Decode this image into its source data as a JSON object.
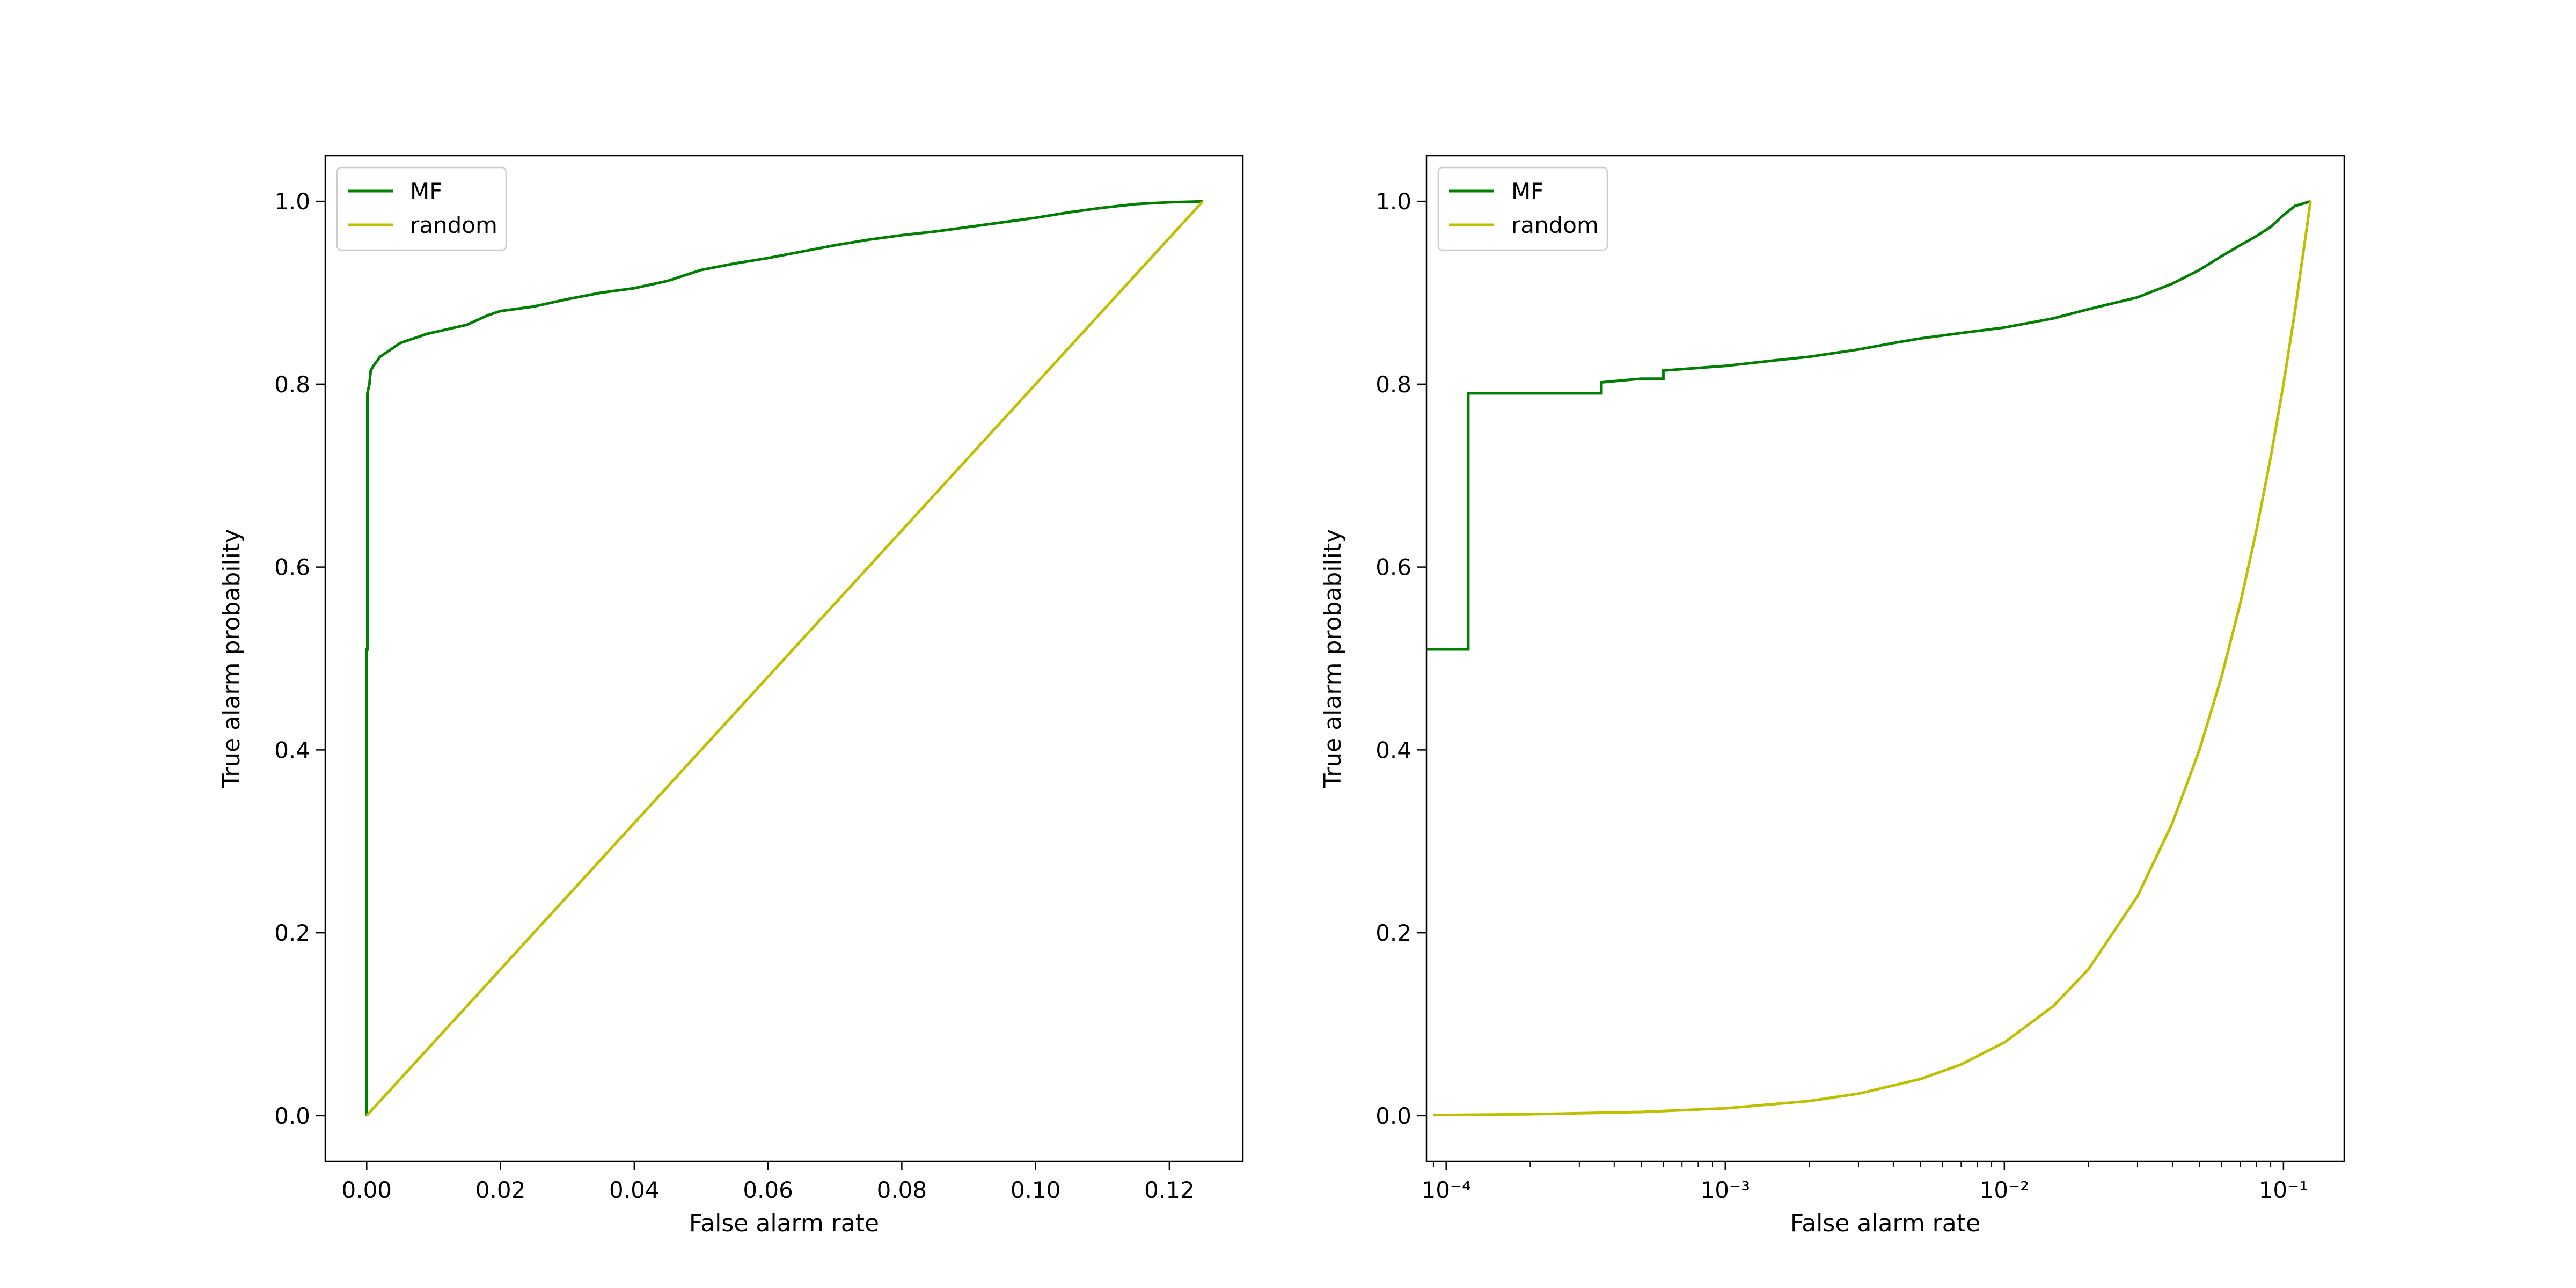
{
  "chart_data": [
    {
      "type": "line",
      "title": "",
      "xlabel": "False alarm rate",
      "ylabel": "True alarm probability",
      "xscale": "linear",
      "xlim": [
        -0.0062,
        0.131
      ],
      "ylim": [
        -0.05,
        1.05
      ],
      "xticks": [
        0.0,
        0.02,
        0.04,
        0.06,
        0.08,
        0.1,
        0.12
      ],
      "xtick_labels": [
        "0.00",
        "0.02",
        "0.04",
        "0.06",
        "0.08",
        "0.10",
        "0.12"
      ],
      "yticks": [
        0.0,
        0.2,
        0.4,
        0.6,
        0.8,
        1.0
      ],
      "ytick_labels": [
        "0.0",
        "0.2",
        "0.4",
        "0.6",
        "0.8",
        "1.0"
      ],
      "grid": false,
      "legend_position": "top-left",
      "series": [
        {
          "name": "MF",
          "color": "#008000",
          "style": "step",
          "x": [
            0.0,
            0.0,
            0.0001,
            0.0001,
            0.0004,
            0.0006,
            0.001,
            0.0015,
            0.002,
            0.003,
            0.004,
            0.005,
            0.007,
            0.009,
            0.012,
            0.015,
            0.018,
            0.02,
            0.025,
            0.03,
            0.035,
            0.04,
            0.045,
            0.05,
            0.055,
            0.06,
            0.065,
            0.07,
            0.075,
            0.08,
            0.085,
            0.09,
            0.095,
            0.1,
            0.105,
            0.11,
            0.115,
            0.12,
            0.125
          ],
          "y": [
            0.0,
            0.51,
            0.51,
            0.79,
            0.8,
            0.815,
            0.82,
            0.825,
            0.83,
            0.835,
            0.84,
            0.845,
            0.85,
            0.855,
            0.86,
            0.865,
            0.875,
            0.88,
            0.885,
            0.893,
            0.9,
            0.905,
            0.913,
            0.925,
            0.932,
            0.938,
            0.945,
            0.952,
            0.958,
            0.963,
            0.967,
            0.972,
            0.977,
            0.982,
            0.988,
            0.993,
            0.997,
            0.999,
            1.0
          ]
        },
        {
          "name": "random",
          "color": "#bfbf00",
          "style": "line",
          "x": [
            0.0,
            0.125
          ],
          "y": [
            0.0,
            1.0
          ]
        }
      ]
    },
    {
      "type": "line",
      "title": "",
      "xlabel": "False alarm rate",
      "ylabel": "True alarm probability",
      "xscale": "log",
      "xlim": [
        8.5e-05,
        0.165
      ],
      "ylim": [
        -0.05,
        1.05
      ],
      "xticks": [
        0.0001,
        0.001,
        0.01,
        0.1
      ],
      "xtick_labels": [
        "10⁻⁴",
        "10⁻³",
        "10⁻²",
        "10⁻¹"
      ],
      "yticks": [
        0.0,
        0.2,
        0.4,
        0.6,
        0.8,
        1.0
      ],
      "ytick_labels": [
        "0.0",
        "0.2",
        "0.4",
        "0.6",
        "0.8",
        "1.0"
      ],
      "grid": false,
      "legend_position": "top-left",
      "series": [
        {
          "name": "MF",
          "color": "#008000",
          "style": "step",
          "x": [
            8.5e-05,
            0.00012,
            0.00012,
            0.00025,
            0.00036,
            0.00036,
            0.0005,
            0.0006,
            0.0006,
            0.001,
            0.0015,
            0.002,
            0.003,
            0.004,
            0.005,
            0.007,
            0.01,
            0.015,
            0.02,
            0.03,
            0.04,
            0.05,
            0.06,
            0.07,
            0.08,
            0.09,
            0.1,
            0.11,
            0.125
          ],
          "y": [
            0.51,
            0.51,
            0.79,
            0.79,
            0.79,
            0.802,
            0.806,
            0.806,
            0.815,
            0.82,
            0.826,
            0.83,
            0.838,
            0.845,
            0.85,
            0.856,
            0.862,
            0.872,
            0.882,
            0.895,
            0.91,
            0.925,
            0.94,
            0.952,
            0.962,
            0.972,
            0.985,
            0.995,
            1.0
          ]
        },
        {
          "name": "random",
          "color": "#bfbf00",
          "style": "line",
          "x": [
            9e-05,
            0.0001,
            0.0002,
            0.0005,
            0.001,
            0.002,
            0.003,
            0.005,
            0.007,
            0.01,
            0.015,
            0.02,
            0.03,
            0.04,
            0.05,
            0.06,
            0.07,
            0.08,
            0.09,
            0.1,
            0.11,
            0.125
          ],
          "y": [
            0.0007,
            0.0008,
            0.0016,
            0.004,
            0.008,
            0.016,
            0.024,
            0.04,
            0.056,
            0.08,
            0.12,
            0.16,
            0.24,
            0.32,
            0.4,
            0.48,
            0.56,
            0.64,
            0.72,
            0.8,
            0.88,
            1.0
          ]
        }
      ]
    }
  ]
}
